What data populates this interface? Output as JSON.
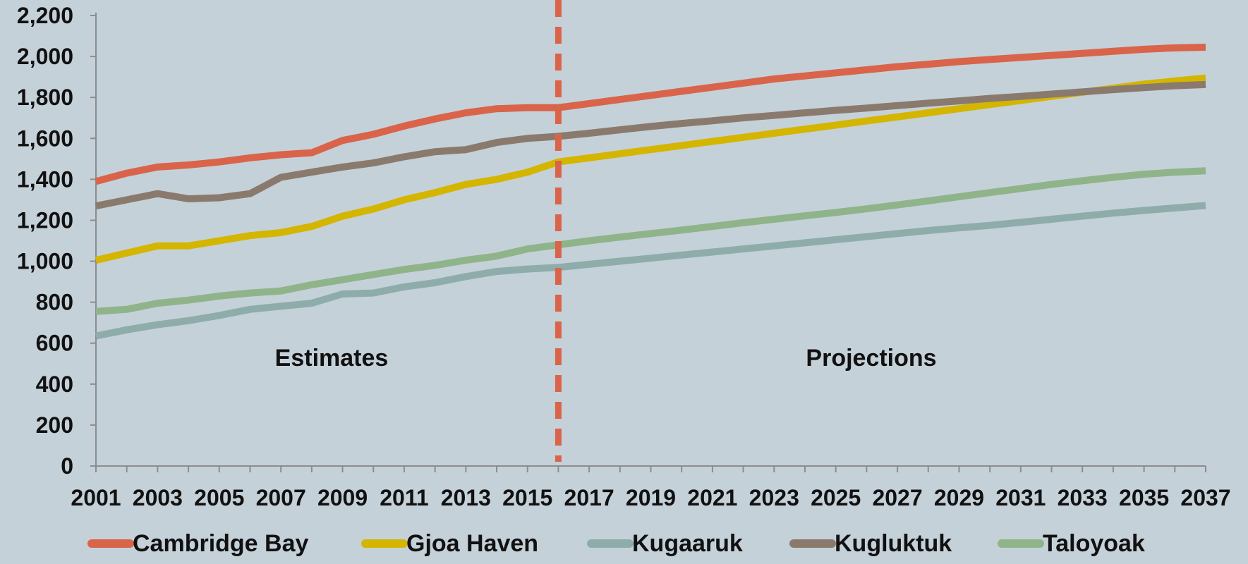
{
  "chart_data": {
    "type": "line",
    "title": "",
    "xlabel": "",
    "ylabel": "",
    "ylim": [
      0,
      2200
    ],
    "xlim": [
      2001,
      2037
    ],
    "y_ticks": [
      0,
      200,
      400,
      600,
      800,
      1000,
      1200,
      1400,
      1600,
      1800,
      2000,
      2200
    ],
    "x_tick_labels": [
      "2001",
      "2003",
      "2005",
      "2007",
      "2009",
      "2011",
      "2013",
      "2015",
      "2017",
      "2019",
      "2021",
      "2023",
      "2025",
      "2027",
      "2029",
      "2031",
      "2033",
      "2035",
      "2037"
    ],
    "grid": false,
    "legend_position": "bottom",
    "divider_year": 2016,
    "divider_color": "#d9644a",
    "region_labels": {
      "left": "Estimates",
      "right": "Projections"
    },
    "x": [
      2001,
      2002,
      2003,
      2004,
      2005,
      2006,
      2007,
      2008,
      2009,
      2010,
      2011,
      2012,
      2013,
      2014,
      2015,
      2016,
      2017,
      2018,
      2019,
      2020,
      2021,
      2022,
      2023,
      2024,
      2025,
      2026,
      2027,
      2028,
      2029,
      2030,
      2031,
      2032,
      2033,
      2034,
      2035,
      2036,
      2037
    ],
    "series": [
      {
        "name": "Cambridge Bay",
        "color": "#d9644a",
        "values": [
          1390,
          1430,
          1460,
          1470,
          1485,
          1505,
          1520,
          1530,
          1590,
          1620,
          1660,
          1695,
          1725,
          1745,
          1750,
          1750,
          1770,
          1790,
          1810,
          1830,
          1850,
          1870,
          1890,
          1905,
          1920,
          1935,
          1950,
          1962,
          1975,
          1985,
          1995,
          2005,
          2015,
          2025,
          2035,
          2042,
          2045
        ]
      },
      {
        "name": "Gjoa Haven",
        "color": "#d4b500",
        "values": [
          1005,
          1040,
          1075,
          1075,
          1100,
          1125,
          1140,
          1170,
          1220,
          1255,
          1300,
          1335,
          1375,
          1400,
          1435,
          1485,
          1505,
          1525,
          1545,
          1565,
          1585,
          1605,
          1625,
          1645,
          1665,
          1685,
          1705,
          1725,
          1745,
          1765,
          1785,
          1805,
          1825,
          1845,
          1865,
          1880,
          1895
        ]
      },
      {
        "name": "Kugaaruk",
        "color": "#8eadaa",
        "values": [
          635,
          665,
          690,
          710,
          735,
          765,
          780,
          795,
          840,
          845,
          875,
          895,
          925,
          950,
          962,
          970,
          985,
          1000,
          1015,
          1030,
          1045,
          1060,
          1075,
          1090,
          1105,
          1120,
          1135,
          1150,
          1163,
          1175,
          1190,
          1205,
          1220,
          1235,
          1248,
          1260,
          1272
        ]
      },
      {
        "name": "Kugluktuk",
        "color": "#8a7a6e",
        "values": [
          1270,
          1300,
          1330,
          1305,
          1310,
          1330,
          1410,
          1435,
          1460,
          1480,
          1510,
          1535,
          1545,
          1580,
          1600,
          1610,
          1625,
          1642,
          1658,
          1673,
          1686,
          1700,
          1712,
          1725,
          1737,
          1748,
          1760,
          1772,
          1783,
          1795,
          1805,
          1816,
          1827,
          1838,
          1848,
          1857,
          1863
        ]
      },
      {
        "name": "Taloyoak",
        "color": "#8fb48a",
        "values": [
          755,
          765,
          795,
          810,
          830,
          845,
          855,
          885,
          910,
          935,
          960,
          980,
          1005,
          1025,
          1060,
          1080,
          1100,
          1118,
          1135,
          1152,
          1170,
          1188,
          1205,
          1222,
          1238,
          1256,
          1275,
          1295,
          1315,
          1335,
          1355,
          1375,
          1393,
          1410,
          1425,
          1435,
          1442
        ]
      }
    ]
  }
}
